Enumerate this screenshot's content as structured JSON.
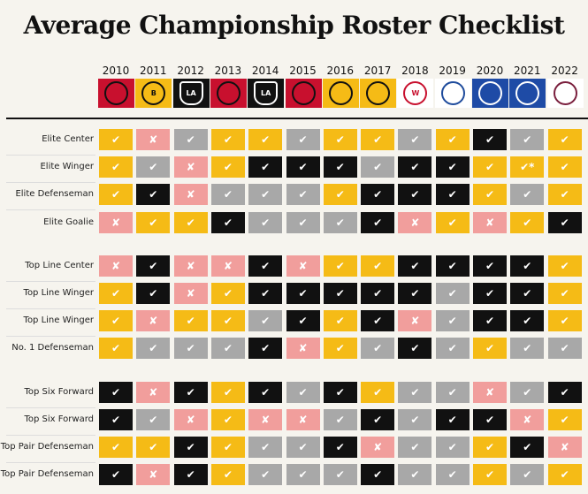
{
  "title": "Average Championship Roster Checklist",
  "colors": {
    "yellow": "#f5bb16",
    "black": "#111111",
    "gray": "#a8a8a8",
    "pink": "#f19e9c"
  },
  "symbols": {
    "check": "✔",
    "cross": "✘",
    "check_star": "✔*"
  },
  "status_legend": {
    "Y": "yellow check",
    "K": "black check",
    "G": "gray check",
    "P": "pink cross",
    "S": "yellow check with asterisk"
  },
  "seasons": [
    {
      "year": "2010",
      "team_icon": "blackhawks-logo",
      "bg": "#c8102e",
      "fg": "#111",
      "abbr": ""
    },
    {
      "year": "2011",
      "team_icon": "bruins-logo",
      "bg": "#f5bb16",
      "fg": "#111",
      "abbr": "B"
    },
    {
      "year": "2012",
      "team_icon": "kings-logo",
      "bg": "#111111",
      "fg": "#fff",
      "abbr": "LA"
    },
    {
      "year": "2013",
      "team_icon": "blackhawks-logo",
      "bg": "#c8102e",
      "fg": "#111",
      "abbr": ""
    },
    {
      "year": "2014",
      "team_icon": "kings-logo",
      "bg": "#111111",
      "fg": "#fff",
      "abbr": "LA"
    },
    {
      "year": "2015",
      "team_icon": "blackhawks-logo",
      "bg": "#c8102e",
      "fg": "#111",
      "abbr": ""
    },
    {
      "year": "2016",
      "team_icon": "penguins-logo",
      "bg": "#f5bb16",
      "fg": "#111",
      "abbr": ""
    },
    {
      "year": "2017",
      "team_icon": "penguins-logo",
      "bg": "#f5bb16",
      "fg": "#111",
      "abbr": ""
    },
    {
      "year": "2018",
      "team_icon": "capitals-logo",
      "bg": "#ffffff",
      "fg": "#c8102e",
      "abbr": "W"
    },
    {
      "year": "2019",
      "team_icon": "blues-logo",
      "bg": "#ffffff",
      "fg": "#1e4b9c",
      "abbr": ""
    },
    {
      "year": "2020",
      "team_icon": "lightning-logo",
      "bg": "#1e4ba6",
      "fg": "#fff",
      "abbr": ""
    },
    {
      "year": "2021",
      "team_icon": "lightning-logo",
      "bg": "#1e4ba6",
      "fg": "#fff",
      "abbr": ""
    },
    {
      "year": "2022",
      "team_icon": "avalanche-logo",
      "bg": "#ffffff",
      "fg": "#7a1f3d",
      "abbr": ""
    }
  ],
  "groups": [
    {
      "rows": [
        {
          "label": "Elite Center",
          "cells": "YPGYYGYYGYKGY"
        },
        {
          "label": "Elite Winger",
          "cells": "YGPYKKKGKKYSY"
        },
        {
          "label": "Elite Defenseman",
          "cells": "YKPGGGYKKKYGY"
        },
        {
          "label": "Elite Goalie",
          "cells": "PYYKGGGKPYPYK"
        }
      ]
    },
    {
      "rows": [
        {
          "label": "Top Line Center",
          "cells": "PKPPKPYYKKKKY"
        },
        {
          "label": "Top Line Winger",
          "cells": "YKPYKKKKKGKKY"
        },
        {
          "label": "Top Line Winger",
          "cells": "YPYYGKYKPGKKY"
        },
        {
          "label": "No. 1 Defenseman",
          "cells": "YGGGKPYGKGYGG"
        }
      ]
    },
    {
      "rows": [
        {
          "label": "Top Six Forward",
          "cells": "KPKYKGKYGGPGK"
        },
        {
          "label": "Top Six Forward",
          "cells": "KGPYPPGKGKKPY"
        },
        {
          "label": "Top Pair Defenseman",
          "cells": "YYKYGGKPGGYKP"
        },
        {
          "label": "Top Pair Defenseman",
          "cells": "KPKYGGGKGGYGY"
        }
      ]
    }
  ]
}
